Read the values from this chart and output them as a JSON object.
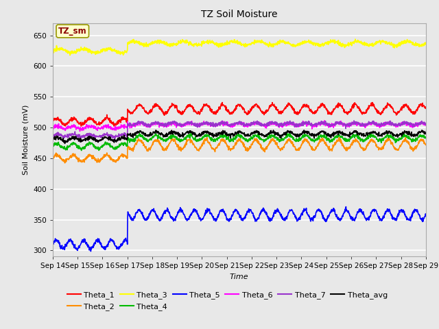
{
  "title": "TZ Soil Moisture",
  "xlabel": "Time",
  "ylabel": "Soil Moisture (mV)",
  "ylim": [
    290,
    670
  ],
  "yticks": [
    300,
    350,
    400,
    450,
    500,
    550,
    600,
    650
  ],
  "x_labels": [
    "Sep 14",
    "Sep 15",
    "Sep 16",
    "Sep 17",
    "Sep 18",
    "Sep 19",
    "Sep 20",
    "Sep 21",
    "Sep 22",
    "Sep 23",
    "Sep 24",
    "Sep 25",
    "Sep 26",
    "Sep 27",
    "Sep 28",
    "Sep 29"
  ],
  "annotation_label": "TZ_sm",
  "annotation_color": "#8b0000",
  "annotation_bg": "#ffffcc",
  "annotation_border": "#999900",
  "background_color": "#e8e8e8",
  "plot_bg": "#e8e8e8",
  "grid_color": "#ffffff",
  "colors": {
    "Theta_1": "#ff0000",
    "Theta_2": "#ff8c00",
    "Theta_3": "#ffff00",
    "Theta_4": "#00bb00",
    "Theta_5": "#0000ff",
    "Theta_6": "#ff00ff",
    "Theta_7": "#9933cc",
    "Theta_avg": "#000000"
  },
  "n_days": 15,
  "transition_day": 3,
  "series": {
    "Theta_1": {
      "before_mean": 510,
      "before_amp": 5,
      "after_mean": 530,
      "after_amp": 7,
      "jump": 530,
      "freq": 1.5
    },
    "Theta_2": {
      "before_mean": 450,
      "before_amp": 5,
      "after_mean": 472,
      "after_amp": 8,
      "jump": 470,
      "freq": 1.5
    },
    "Theta_3": {
      "before_mean": 625,
      "before_amp": 3,
      "after_mean": 637,
      "after_amp": 3,
      "jump": 638,
      "freq": 1.0
    },
    "Theta_4": {
      "before_mean": 470,
      "before_amp": 4,
      "after_mean": 483,
      "after_amp": 4,
      "jump": 483,
      "freq": 1.5
    },
    "Theta_5": {
      "before_mean": 310,
      "before_amp": 7,
      "after_mean": 358,
      "after_amp": 8,
      "jump": 355,
      "freq": 1.8
    },
    "Theta_6": {
      "before_mean": 500,
      "before_amp": 2,
      "after_mean": 505,
      "after_amp": 2,
      "jump": 510,
      "freq": 1.5
    },
    "Theta_7": {
      "before_mean": 487,
      "before_amp": 2,
      "after_mean": 506,
      "after_amp": 2,
      "jump": 506,
      "freq": 1.5
    },
    "Theta_avg": {
      "before_mean": 481,
      "before_amp": 3,
      "after_mean": 490,
      "after_amp": 3,
      "jump": 490,
      "freq": 1.5
    }
  },
  "legend_row1": [
    "Theta_1",
    "Theta_2",
    "Theta_3",
    "Theta_4",
    "Theta_5",
    "Theta_6"
  ],
  "legend_row2": [
    "Theta_7",
    "Theta_avg"
  ]
}
